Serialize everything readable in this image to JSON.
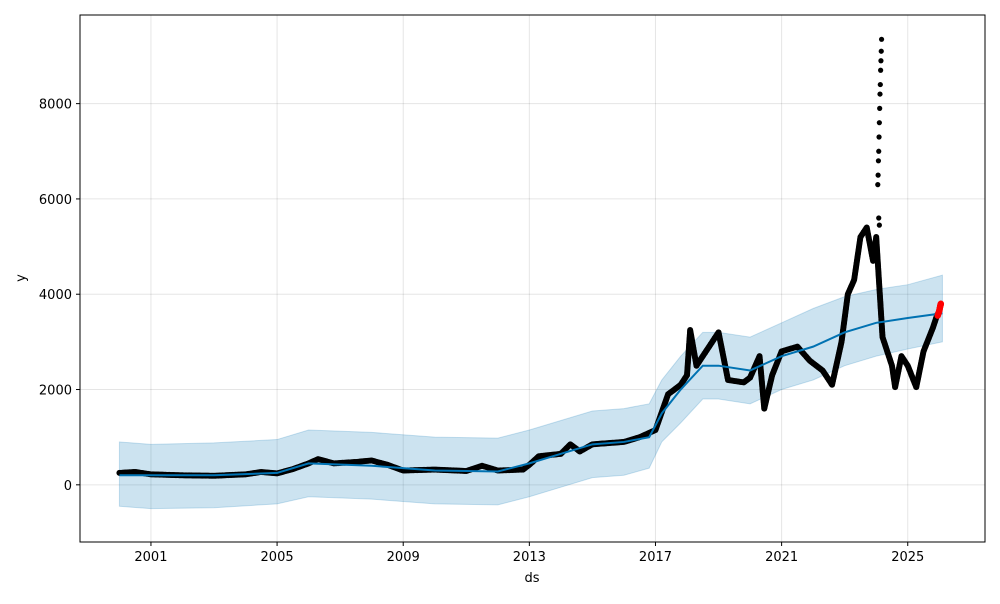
{
  "chart_data": {
    "type": "scatter",
    "title": "",
    "xlabel": "ds",
    "ylabel": "y",
    "xlim": [
      1998.75,
      2027.45
    ],
    "ylim": [
      -1200,
      9860
    ],
    "grid": true,
    "xticks": [
      {
        "v": 2001,
        "label": "2001"
      },
      {
        "v": 2005,
        "label": "2005"
      },
      {
        "v": 2009,
        "label": "2009"
      },
      {
        "v": 2013,
        "label": "2013"
      },
      {
        "v": 2017,
        "label": "2017"
      },
      {
        "v": 2021,
        "label": "2021"
      },
      {
        "v": 2025,
        "label": "2025"
      }
    ],
    "yticks": [
      {
        "v": 0,
        "label": "0"
      },
      {
        "v": 2000,
        "label": "2000"
      },
      {
        "v": 4000,
        "label": "4000"
      },
      {
        "v": 6000,
        "label": "6000"
      },
      {
        "v": 8000,
        "label": "8000"
      }
    ],
    "colors": {
      "actual": "#000000",
      "recent": "#ff0000",
      "forecast": "#0072b2",
      "band": "#0072b2"
    },
    "actual": [
      [
        2000.0,
        250
      ],
      [
        2000.5,
        270
      ],
      [
        2001.0,
        220
      ],
      [
        2002.0,
        200
      ],
      [
        2003.0,
        190
      ],
      [
        2004.0,
        220
      ],
      [
        2004.5,
        270
      ],
      [
        2005.0,
        240
      ],
      [
        2005.5,
        330
      ],
      [
        2006.0,
        450
      ],
      [
        2006.3,
        540
      ],
      [
        2006.8,
        450
      ],
      [
        2007.5,
        480
      ],
      [
        2008.0,
        510
      ],
      [
        2008.5,
        420
      ],
      [
        2009.0,
        300
      ],
      [
        2010.0,
        320
      ],
      [
        2011.0,
        290
      ],
      [
        2011.5,
        400
      ],
      [
        2012.0,
        300
      ],
      [
        2012.8,
        320
      ],
      [
        2013.0,
        420
      ],
      [
        2013.3,
        600
      ],
      [
        2014.0,
        650
      ],
      [
        2014.3,
        850
      ],
      [
        2014.6,
        700
      ],
      [
        2015.0,
        850
      ],
      [
        2016.0,
        900
      ],
      [
        2016.5,
        1000
      ],
      [
        2017.0,
        1150
      ],
      [
        2017.4,
        1900
      ],
      [
        2017.8,
        2100
      ],
      [
        2018.0,
        2300
      ],
      [
        2018.1,
        3250
      ],
      [
        2018.3,
        2500
      ],
      [
        2018.7,
        2900
      ],
      [
        2019.0,
        3200
      ],
      [
        2019.3,
        2200
      ],
      [
        2019.8,
        2150
      ],
      [
        2020.0,
        2250
      ],
      [
        2020.3,
        2700
      ],
      [
        2020.45,
        1600
      ],
      [
        2020.7,
        2300
      ],
      [
        2021.0,
        2800
      ],
      [
        2021.5,
        2900
      ],
      [
        2021.9,
        2600
      ],
      [
        2022.3,
        2400
      ],
      [
        2022.6,
        2100
      ],
      [
        2022.9,
        3000
      ],
      [
        2023.0,
        3500
      ],
      [
        2023.1,
        4000
      ],
      [
        2023.3,
        4300
      ],
      [
        2023.5,
        5200
      ],
      [
        2023.7,
        5400
      ],
      [
        2023.9,
        4700
      ],
      [
        2024.0,
        5200
      ],
      [
        2024.2,
        3100
      ],
      [
        2024.5,
        2500
      ],
      [
        2024.6,
        2050
      ],
      [
        2024.8,
        2700
      ],
      [
        2025.0,
        2500
      ],
      [
        2025.27,
        2050
      ],
      [
        2025.5,
        2800
      ],
      [
        2025.8,
        3300
      ],
      [
        2025.95,
        3600
      ]
    ],
    "spike": [
      [
        2024.05,
        6300
      ],
      [
        2024.06,
        6500
      ],
      [
        2024.07,
        6800
      ],
      [
        2024.08,
        7000
      ],
      [
        2024.09,
        7300
      ],
      [
        2024.1,
        7600
      ],
      [
        2024.11,
        7900
      ],
      [
        2024.12,
        8200
      ],
      [
        2024.13,
        8400
      ],
      [
        2024.14,
        8700
      ],
      [
        2024.15,
        8900
      ],
      [
        2024.16,
        9100
      ],
      [
        2024.17,
        9350
      ],
      [
        2024.08,
        5600
      ],
      [
        2024.1,
        5450
      ]
    ],
    "recent": [
      [
        2025.95,
        3550
      ],
      [
        2026.0,
        3650
      ],
      [
        2026.03,
        3750
      ],
      [
        2026.05,
        3800
      ]
    ],
    "yhat": [
      [
        2000.0,
        200
      ],
      [
        2001.0,
        200
      ],
      [
        2003.0,
        200
      ],
      [
        2005.0,
        250
      ],
      [
        2006.0,
        450
      ],
      [
        2008.0,
        400
      ],
      [
        2010.0,
        300
      ],
      [
        2012.0,
        280
      ],
      [
        2013.0,
        450
      ],
      [
        2014.0,
        650
      ],
      [
        2015.0,
        850
      ],
      [
        2016.0,
        900
      ],
      [
        2016.8,
        1000
      ],
      [
        2017.2,
        1500
      ],
      [
        2017.8,
        2000
      ],
      [
        2018.5,
        2500
      ],
      [
        2019.0,
        2500
      ],
      [
        2020.0,
        2400
      ],
      [
        2021.0,
        2700
      ],
      [
        2022.0,
        2900
      ],
      [
        2023.0,
        3200
      ],
      [
        2024.0,
        3400
      ],
      [
        2025.0,
        3500
      ],
      [
        2026.1,
        3600
      ]
    ],
    "band": [
      [
        2000.0,
        -450,
        900
      ],
      [
        2001.0,
        -500,
        850
      ],
      [
        2003.0,
        -480,
        880
      ],
      [
        2005.0,
        -400,
        950
      ],
      [
        2006.0,
        -250,
        1150
      ],
      [
        2008.0,
        -300,
        1100
      ],
      [
        2010.0,
        -400,
        1000
      ],
      [
        2012.0,
        -420,
        980
      ],
      [
        2013.0,
        -250,
        1150
      ],
      [
        2014.0,
        -50,
        1350
      ],
      [
        2015.0,
        150,
        1550
      ],
      [
        2016.0,
        200,
        1600
      ],
      [
        2016.8,
        350,
        1700
      ],
      [
        2017.2,
        900,
        2200
      ],
      [
        2017.8,
        1300,
        2700
      ],
      [
        2018.5,
        1800,
        3200
      ],
      [
        2019.0,
        1800,
        3200
      ],
      [
        2020.0,
        1700,
        3100
      ],
      [
        2021.0,
        2000,
        3400
      ],
      [
        2022.0,
        2200,
        3700
      ],
      [
        2023.0,
        2500,
        3950
      ],
      [
        2024.0,
        2700,
        4100
      ],
      [
        2025.0,
        2850,
        4200
      ],
      [
        2026.1,
        3000,
        4400
      ]
    ]
  }
}
